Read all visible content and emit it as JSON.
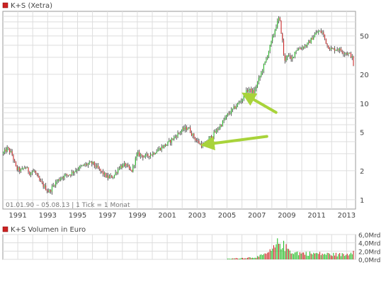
{
  "chart_data": [
    {
      "type": "candlestick",
      "title": "K+S (Xetra)",
      "scale": "log",
      "ylim": [
        0.8,
        90
      ],
      "xlim": [
        1990.0,
        2013.6
      ],
      "y_ticks": [
        1,
        2,
        5,
        10,
        20,
        50
      ],
      "y_tick_labels": [
        "1",
        "2",
        "5",
        "10",
        "20",
        "50"
      ],
      "x_ticks": [
        1991,
        1993,
        1995,
        1997,
        1999,
        2001,
        2003,
        2005,
        2007,
        2009,
        2011,
        2013
      ],
      "x_tick_labels": [
        "1991",
        "1993",
        "1995",
        "1997",
        "1999",
        "2001",
        "2003",
        "2005",
        "2007",
        "2009",
        "2011",
        "2013"
      ],
      "info_text": "01.01.90 – 05.08.13 | 1 Tick = 1 Monat",
      "grid": true,
      "price_path": [
        [
          1990.0,
          3.0
        ],
        [
          1990.3,
          3.4
        ],
        [
          1990.6,
          3.0
        ],
        [
          1990.9,
          2.1
        ],
        [
          1991.2,
          2.0
        ],
        [
          1991.5,
          2.2
        ],
        [
          1991.8,
          1.9
        ],
        [
          1992.1,
          2.0
        ],
        [
          1992.4,
          1.6
        ],
        [
          1992.8,
          1.35
        ],
        [
          1993.1,
          1.2
        ],
        [
          1993.5,
          1.5
        ],
        [
          1994.0,
          1.75
        ],
        [
          1994.5,
          1.85
        ],
        [
          1995.0,
          2.1
        ],
        [
          1995.5,
          2.3
        ],
        [
          1996.0,
          2.4
        ],
        [
          1996.5,
          2.0
        ],
        [
          1997.0,
          1.7
        ],
        [
          1997.4,
          1.75
        ],
        [
          1997.8,
          2.2
        ],
        [
          1998.2,
          2.3
        ],
        [
          1998.6,
          1.95
        ],
        [
          1999.0,
          3.0
        ],
        [
          1999.5,
          2.8
        ],
        [
          2000.0,
          3.0
        ],
        [
          2000.5,
          3.4
        ],
        [
          2001.0,
          3.8
        ],
        [
          2001.5,
          4.5
        ],
        [
          2002.0,
          5.3
        ],
        [
          2002.4,
          5.6
        ],
        [
          2002.8,
          4.4
        ],
        [
          2003.1,
          3.9
        ],
        [
          2003.4,
          3.6
        ],
        [
          2003.8,
          4.3
        ],
        [
          2004.2,
          5.0
        ],
        [
          2004.6,
          6.0
        ],
        [
          2005.0,
          7.5
        ],
        [
          2005.5,
          9.0
        ],
        [
          2006.0,
          11.0
        ],
        [
          2006.4,
          14.0
        ],
        [
          2006.8,
          13.0
        ],
        [
          2007.2,
          19.0
        ],
        [
          2007.6,
          28.0
        ],
        [
          2008.0,
          45.0
        ],
        [
          2008.3,
          65.0
        ],
        [
          2008.5,
          78.0
        ],
        [
          2008.7,
          45.0
        ],
        [
          2008.85,
          26.0
        ],
        [
          2009.0,
          33.0
        ],
        [
          2009.3,
          28.0
        ],
        [
          2009.6,
          36.0
        ],
        [
          2010.0,
          38.0
        ],
        [
          2010.4,
          41.0
        ],
        [
          2010.8,
          50.0
        ],
        [
          2011.1,
          56.0
        ],
        [
          2011.4,
          54.0
        ],
        [
          2011.7,
          40.0
        ],
        [
          2012.0,
          36.0
        ],
        [
          2012.4,
          37.0
        ],
        [
          2012.8,
          34.0
        ],
        [
          2013.1,
          33.0
        ],
        [
          2013.35,
          31.0
        ],
        [
          2013.5,
          23.0
        ],
        [
          2013.58,
          17.5
        ]
      ],
      "annotations": [
        {
          "type": "arrow",
          "color": "#a8d33a",
          "x": 2006.1,
          "y": 12.5
        },
        {
          "type": "arrow",
          "color": "#a8d33a",
          "x": 2003.4,
          "y": 3.7
        }
      ]
    },
    {
      "type": "bar",
      "title": "K+S Volumen in Euro",
      "ylim": [
        0,
        6
      ],
      "y_tick_labels": [
        "0,0Mrd",
        "2,0Mrd",
        "4,0Mrd",
        "6,0Mrd"
      ],
      "y_ticks": [
        0,
        2,
        4,
        6
      ],
      "xlim": [
        1990.0,
        2013.6
      ],
      "grid": true,
      "volume_profile": [
        [
          2005.0,
          0.15
        ],
        [
          2006.0,
          0.35
        ],
        [
          2007.0,
          0.6
        ],
        [
          2007.5,
          1.2
        ],
        [
          2008.0,
          2.2
        ],
        [
          2008.5,
          4.6
        ],
        [
          2009.0,
          2.8
        ],
        [
          2009.5,
          1.8
        ],
        [
          2010.0,
          1.6
        ],
        [
          2011.0,
          1.5
        ],
        [
          2012.0,
          1.3
        ],
        [
          2013.0,
          1.2
        ],
        [
          2013.55,
          2.6
        ]
      ]
    }
  ],
  "colors": {
    "up": "#22bb22",
    "down": "#cc2222",
    "grid": "#dddddd",
    "frame": "#999999",
    "title_marker": "#cc2222",
    "arrow": "#a8d33a"
  }
}
